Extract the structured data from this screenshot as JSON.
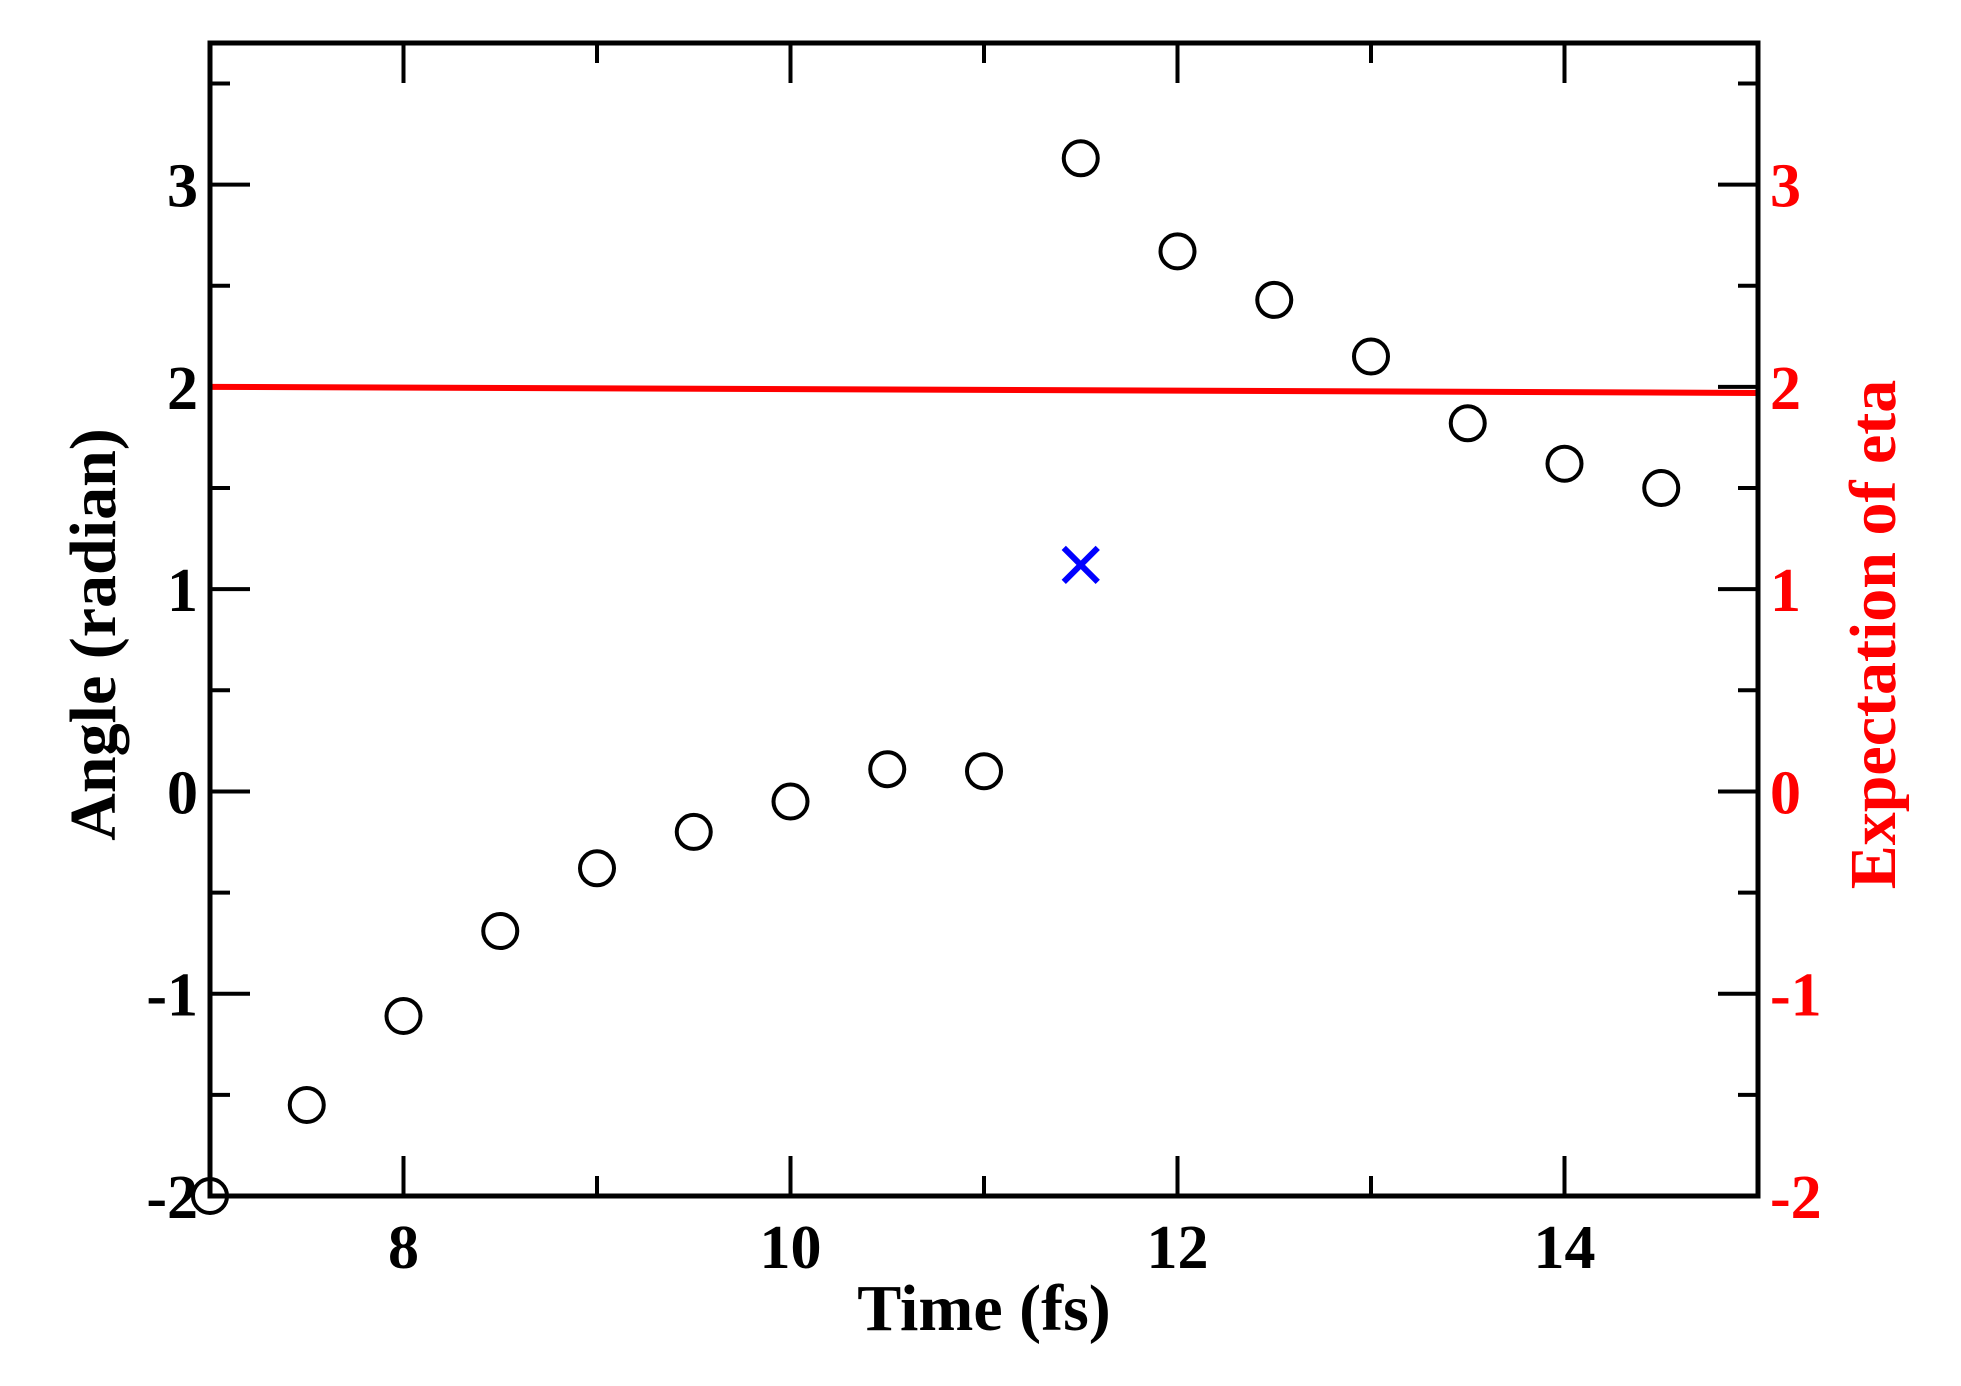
{
  "chart_data": {
    "type": "scatter",
    "title": "",
    "xlabel": "Time (fs)",
    "ylabel": "Angle (radian)",
    "y2label": "Expectation of eta",
    "xlim": [
      7,
      15
    ],
    "ylim": [
      -2,
      3.7
    ],
    "y2lim": [
      -2,
      3.7
    ],
    "x_ticks": [
      8,
      10,
      12,
      14
    ],
    "y_ticks": [
      -2,
      -1,
      0,
      1,
      2,
      3
    ],
    "y2_ticks": [
      -2,
      -1,
      0,
      1,
      2,
      3
    ],
    "grid": false,
    "colors": {
      "axis": "#000000",
      "circles": "#000000",
      "cross": "#0000ff",
      "line": "#ff0000",
      "y2_axis": "#ff0000"
    },
    "series": [
      {
        "marker": "circle",
        "x": [
          7,
          7.5,
          8,
          8.5,
          9,
          9.5,
          10,
          10.5,
          11,
          11.5,
          12,
          12.5,
          13,
          13.5,
          14,
          14.5
        ],
        "y": [
          -2.0,
          -1.55,
          -1.11,
          -0.69,
          -0.38,
          -0.2,
          -0.05,
          0.11,
          0.1,
          3.13,
          2.67,
          2.43,
          2.15,
          1.82,
          1.62,
          1.5
        ]
      },
      {
        "marker": "x",
        "x": [
          11.5
        ],
        "y": [
          1.12
        ]
      },
      {
        "marker": "line",
        "axis": "right",
        "x": [
          7,
          15
        ],
        "y": [
          2.0,
          1.97
        ]
      }
    ]
  }
}
